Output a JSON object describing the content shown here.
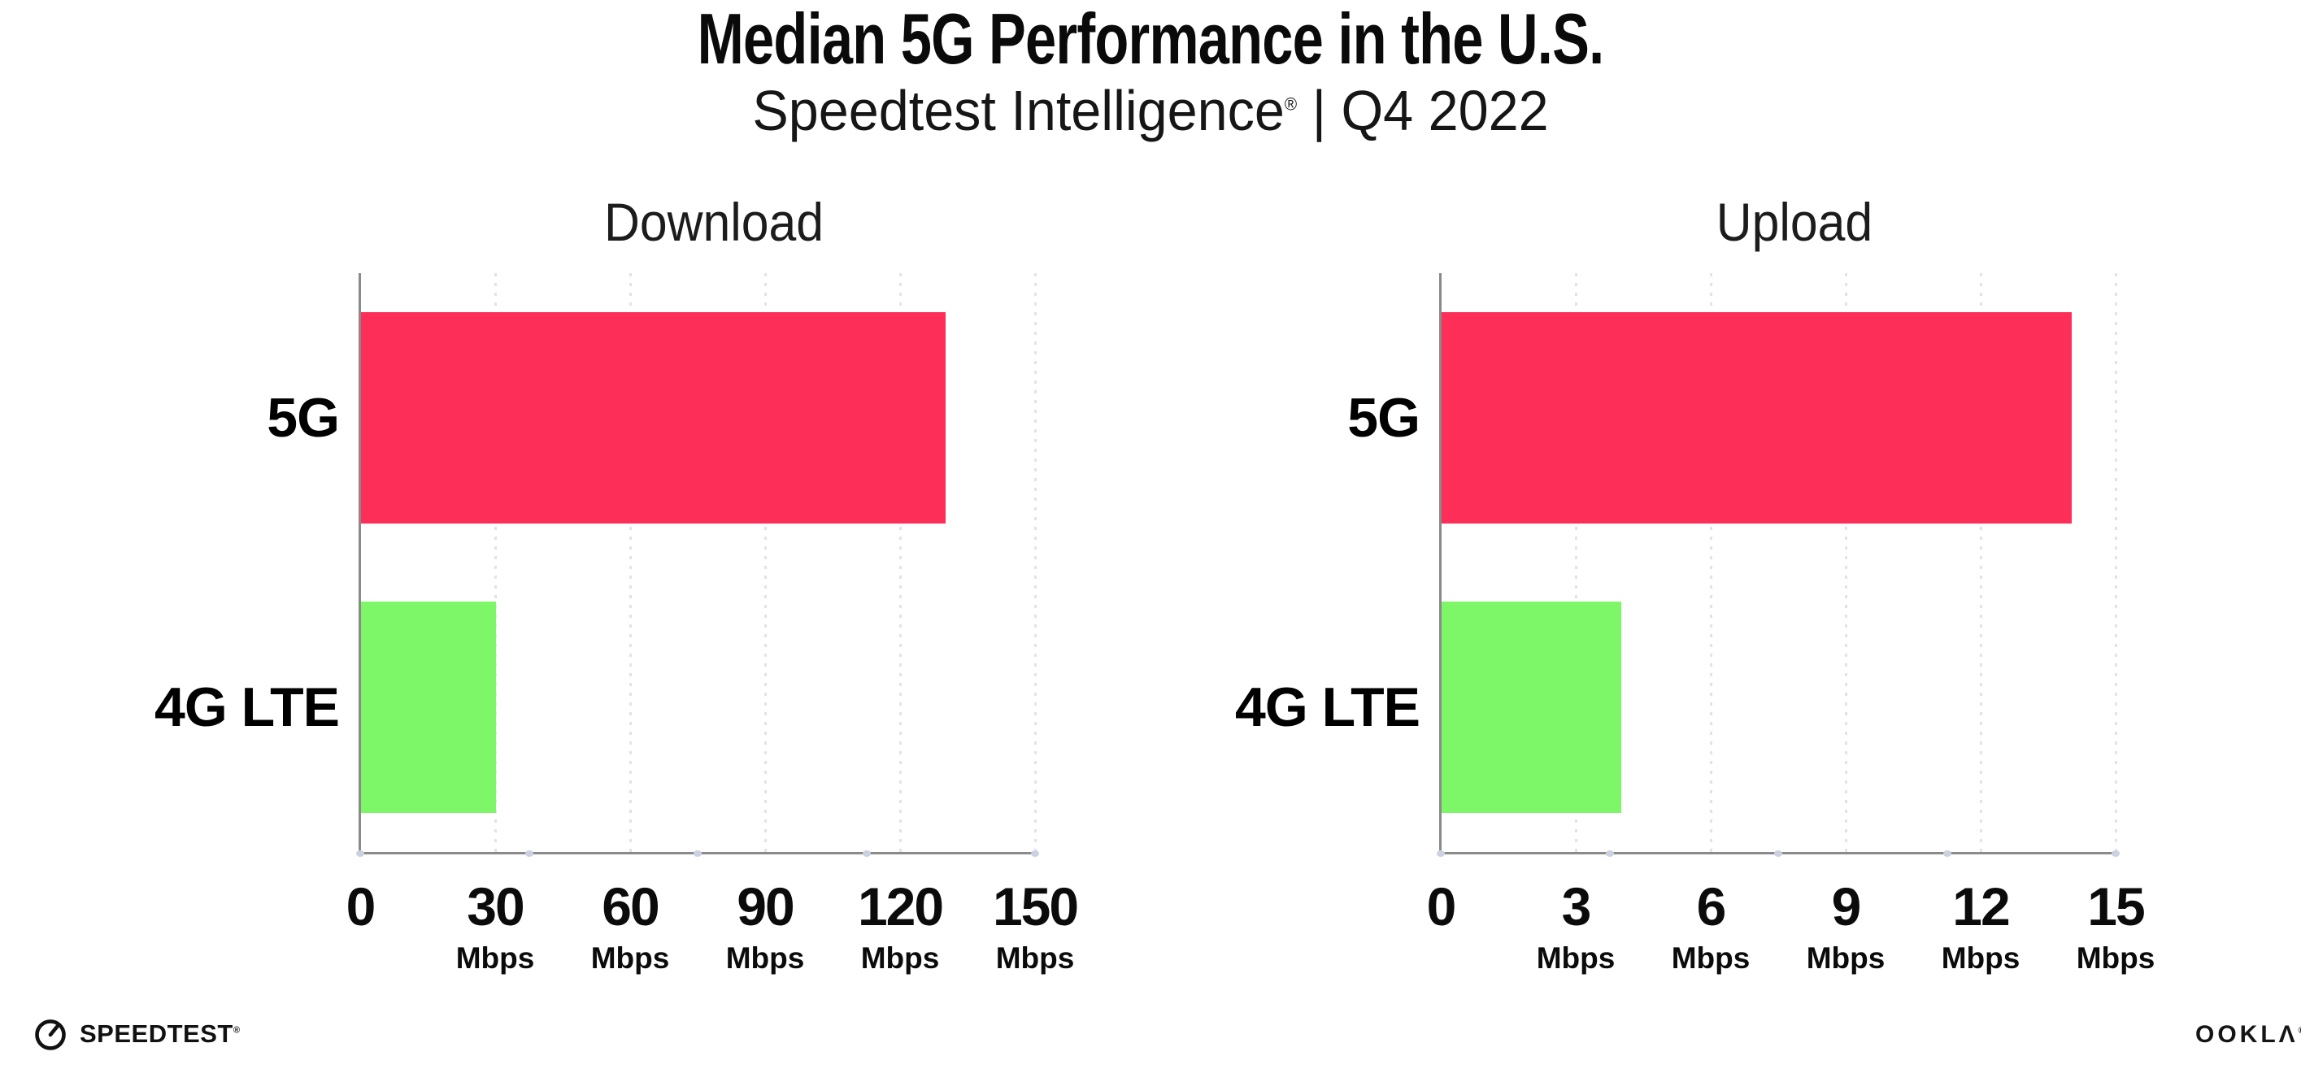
{
  "header": {
    "title": "Median 5G Performance in the U.S.",
    "subtitle_brand": "Speedtest Intelligence",
    "subtitle_reg": "®",
    "subtitle_rest": " | Q4 2022"
  },
  "footer": {
    "speedtest_label": "SPEEDTEST",
    "speedtest_reg": "®",
    "ookla_label": "OOKLΛ",
    "ookla_reg": "®"
  },
  "colors": {
    "bar_5g": "#FD2E58",
    "bar_4g": "#7DF767",
    "axis_line": "#8a8a8a",
    "gridline_dot": "#e2e2ee",
    "axis_tick_dot": "#ccd1e2",
    "text": "#0c0c0c"
  },
  "chart_data": [
    {
      "type": "bar",
      "orientation": "horizontal",
      "title": "Download",
      "categories": [
        "5G",
        "4G LTE"
      ],
      "values": [
        130,
        30
      ],
      "bar_colors": [
        "#FD2E58",
        "#7DF767"
      ],
      "unit": "Mbps",
      "xlim": [
        0,
        150
      ],
      "xticks": [
        0,
        30,
        60,
        90,
        120,
        150
      ],
      "tick_unit_label": "Mbps",
      "grid": "dotted-vertical",
      "legend": "none"
    },
    {
      "type": "bar",
      "orientation": "horizontal",
      "title": "Upload",
      "categories": [
        "5G",
        "4G LTE"
      ],
      "values": [
        14,
        4
      ],
      "bar_colors": [
        "#FD2E58",
        "#7DF767"
      ],
      "unit": "Mbps",
      "xlim": [
        0,
        15
      ],
      "xticks": [
        0,
        3,
        6,
        9,
        12,
        15
      ],
      "tick_unit_label": "Mbps",
      "grid": "dotted-vertical",
      "legend": "none"
    }
  ]
}
